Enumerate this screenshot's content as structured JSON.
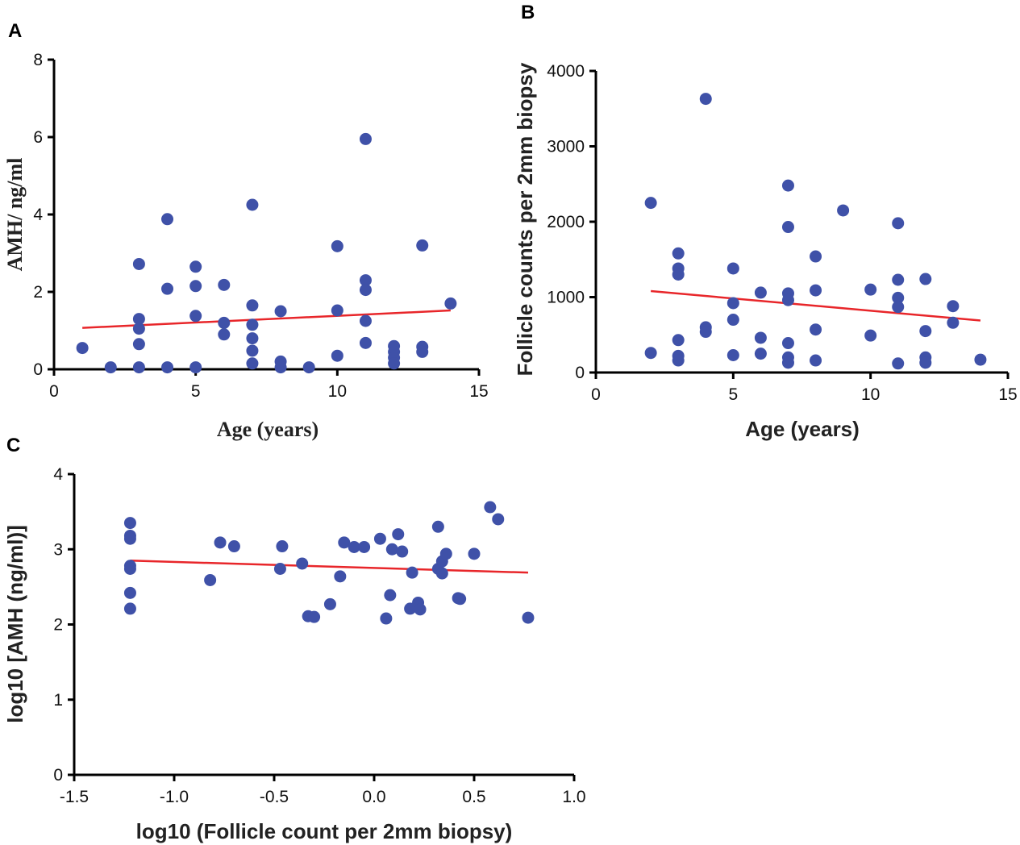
{
  "figure": {
    "panels": [
      "A",
      "B",
      "C"
    ]
  },
  "chart_data": [
    {
      "id": "A",
      "type": "scatter",
      "panel_label": "A",
      "title": "",
      "xlabel": "Age (years)",
      "ylabel": "AMH/ ng/ml",
      "xlim": [
        0,
        15
      ],
      "ylim": [
        0,
        8
      ],
      "xticks": [
        0,
        5,
        10,
        15
      ],
      "yticks": [
        0,
        2,
        4,
        6,
        8
      ],
      "xtick_labels": [
        "0",
        "5",
        "10",
        "15"
      ],
      "ytick_labels": [
        "0",
        "2",
        "4",
        "6",
        "8"
      ],
      "label_style": "serif",
      "marker_color": "#3f51a8",
      "line_color": "#e8262a",
      "points": [
        [
          1,
          0.55
        ],
        [
          2,
          0.05
        ],
        [
          3,
          2.72
        ],
        [
          3,
          1.3
        ],
        [
          3,
          1.05
        ],
        [
          3,
          0.65
        ],
        [
          3,
          0.05
        ],
        [
          4,
          3.88
        ],
        [
          4,
          2.08
        ],
        [
          4,
          0.05
        ],
        [
          5,
          2.65
        ],
        [
          5,
          2.15
        ],
        [
          5,
          1.38
        ],
        [
          5,
          0.05
        ],
        [
          6,
          2.18
        ],
        [
          6,
          1.2
        ],
        [
          6,
          0.9
        ],
        [
          7,
          4.25
        ],
        [
          7,
          1.65
        ],
        [
          7,
          1.15
        ],
        [
          7,
          0.8
        ],
        [
          7,
          0.48
        ],
        [
          7,
          0.15
        ],
        [
          8,
          1.5
        ],
        [
          8,
          0.2
        ],
        [
          8,
          0.05
        ],
        [
          9,
          0.05
        ],
        [
          10,
          3.18
        ],
        [
          10,
          1.52
        ],
        [
          10,
          0.35
        ],
        [
          11,
          5.95
        ],
        [
          11,
          2.3
        ],
        [
          11,
          2.05
        ],
        [
          11,
          1.25
        ],
        [
          11,
          0.68
        ],
        [
          12,
          0.6
        ],
        [
          12,
          0.45
        ],
        [
          12,
          0.3
        ],
        [
          12,
          0.15
        ],
        [
          13,
          3.2
        ],
        [
          13,
          0.58
        ],
        [
          13,
          0.45
        ],
        [
          14,
          1.7
        ]
      ],
      "fit_line": {
        "x": [
          1,
          14
        ],
        "y": [
          1.07,
          1.52
        ]
      }
    },
    {
      "id": "B",
      "type": "scatter",
      "panel_label": "B",
      "title": "",
      "xlabel": "Age (years)",
      "ylabel": "Follicle counts per 2mm biopsy",
      "xlim": [
        0,
        15
      ],
      "ylim": [
        0,
        4000
      ],
      "xticks": [
        0,
        5,
        10,
        15
      ],
      "yticks": [
        0,
        1000,
        2000,
        3000,
        4000
      ],
      "xtick_labels": [
        "0",
        "5",
        "10",
        "15"
      ],
      "ytick_labels": [
        "0",
        "1000",
        "2000",
        "3000",
        "4000"
      ],
      "label_style": "sans",
      "marker_color": "#3f51a8",
      "line_color": "#e8262a",
      "points": [
        [
          2,
          2250
        ],
        [
          2,
          260
        ],
        [
          3,
          1580
        ],
        [
          3,
          1380
        ],
        [
          3,
          1300
        ],
        [
          3,
          430
        ],
        [
          3,
          220
        ],
        [
          3,
          160
        ],
        [
          4,
          3630
        ],
        [
          4,
          600
        ],
        [
          4,
          540
        ],
        [
          5,
          1380
        ],
        [
          5,
          920
        ],
        [
          5,
          700
        ],
        [
          5,
          230
        ],
        [
          6,
          1060
        ],
        [
          6,
          460
        ],
        [
          6,
          250
        ],
        [
          7,
          2480
        ],
        [
          7,
          1930
        ],
        [
          7,
          1050
        ],
        [
          7,
          960
        ],
        [
          7,
          390
        ],
        [
          7,
          200
        ],
        [
          7,
          130
        ],
        [
          8,
          1540
        ],
        [
          8,
          1090
        ],
        [
          8,
          570
        ],
        [
          8,
          160
        ],
        [
          9,
          2150
        ],
        [
          10,
          1100
        ],
        [
          10,
          490
        ],
        [
          11,
          1980
        ],
        [
          11,
          1230
        ],
        [
          11,
          990
        ],
        [
          11,
          870
        ],
        [
          11,
          120
        ],
        [
          12,
          1240
        ],
        [
          12,
          550
        ],
        [
          12,
          200
        ],
        [
          12,
          130
        ],
        [
          13,
          880
        ],
        [
          13,
          660
        ],
        [
          14,
          170
        ]
      ],
      "fit_line": {
        "x": [
          2,
          14
        ],
        "y": [
          1080,
          690
        ]
      }
    },
    {
      "id": "C",
      "type": "scatter",
      "panel_label": "C",
      "title": "",
      "xlabel": "log10 (Follicle count per 2mm biopsy)",
      "ylabel": "log10 [AMH (ng/ml)]",
      "xlim": [
        -1.5,
        1.0
      ],
      "ylim": [
        0,
        4
      ],
      "xticks": [
        -1.5,
        -1.0,
        -0.5,
        0.0,
        0.5,
        1.0
      ],
      "yticks": [
        0,
        1,
        2,
        3,
        4
      ],
      "xtick_labels": [
        "-1.5",
        "-1.0",
        "-0.5",
        "0.0",
        "0.5",
        "1.0"
      ],
      "ytick_labels": [
        "0",
        "1",
        "2",
        "3",
        "4"
      ],
      "label_style": "sans",
      "marker_color": "#3f51a8",
      "line_color": "#e8262a",
      "points": [
        [
          -1.22,
          3.35
        ],
        [
          -1.22,
          3.18
        ],
        [
          -1.22,
          3.14
        ],
        [
          -1.22,
          2.78
        ],
        [
          -1.22,
          2.74
        ],
        [
          -1.22,
          2.42
        ],
        [
          -1.22,
          2.21
        ],
        [
          -0.82,
          2.59
        ],
        [
          -0.77,
          3.09
        ],
        [
          -0.7,
          3.04
        ],
        [
          -0.46,
          3.04
        ],
        [
          -0.47,
          2.74
        ],
        [
          -0.36,
          2.81
        ],
        [
          -0.33,
          2.11
        ],
        [
          -0.3,
          2.1
        ],
        [
          -0.22,
          2.27
        ],
        [
          -0.17,
          2.64
        ],
        [
          -0.15,
          3.09
        ],
        [
          -0.1,
          3.03
        ],
        [
          -0.05,
          3.03
        ],
        [
          0.03,
          3.14
        ],
        [
          0.06,
          2.08
        ],
        [
          0.08,
          2.39
        ],
        [
          0.09,
          3.0
        ],
        [
          0.12,
          3.2
        ],
        [
          0.14,
          2.97
        ],
        [
          0.18,
          2.21
        ],
        [
          0.19,
          2.69
        ],
        [
          0.22,
          2.29
        ],
        [
          0.23,
          2.2
        ],
        [
          0.32,
          3.3
        ],
        [
          0.32,
          2.74
        ],
        [
          0.34,
          2.84
        ],
        [
          0.34,
          2.68
        ],
        [
          0.36,
          2.94
        ],
        [
          0.42,
          2.35
        ],
        [
          0.43,
          2.34
        ],
        [
          0.5,
          2.94
        ],
        [
          0.58,
          3.56
        ],
        [
          0.62,
          3.4
        ],
        [
          0.77,
          2.09
        ]
      ],
      "fit_line": {
        "x": [
          -1.22,
          0.77
        ],
        "y": [
          2.85,
          2.69
        ]
      }
    }
  ]
}
